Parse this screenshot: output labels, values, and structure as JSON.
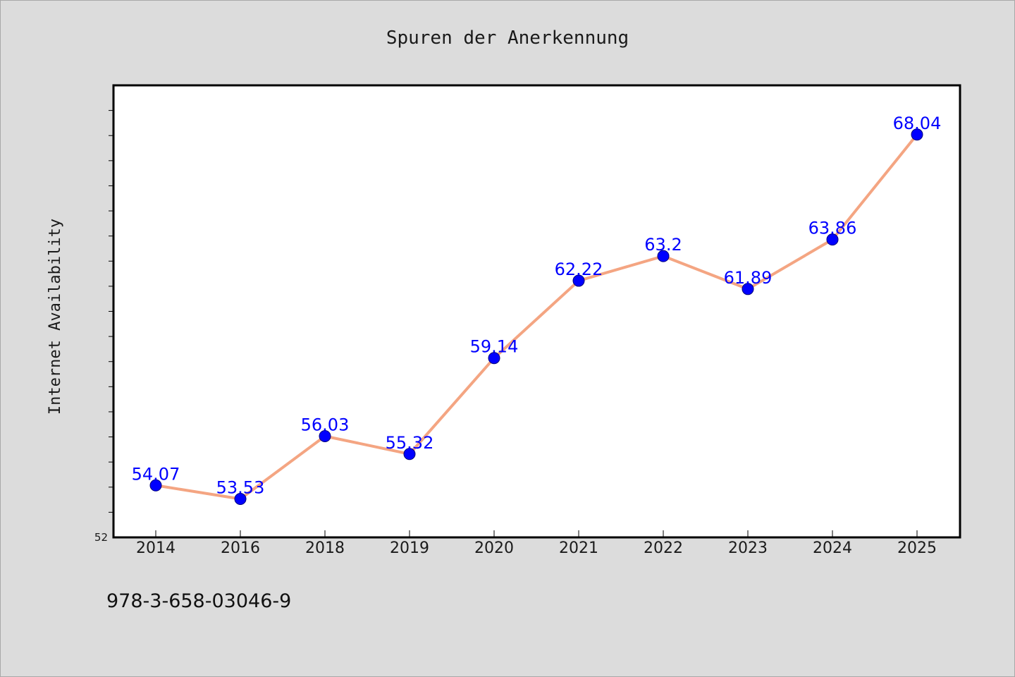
{
  "chart_data": {
    "type": "line",
    "title": "Spuren der Anerkennung",
    "xlabel": "",
    "ylabel": "Internet Availability",
    "categories": [
      "2014",
      "2016",
      "2018",
      "2019",
      "2020",
      "2021",
      "2022",
      "2023",
      "2024",
      "2025"
    ],
    "series": [
      {
        "values": [
          54.07,
          53.53,
          56.03,
          55.32,
          59.14,
          62.22,
          63.2,
          61.89,
          63.86,
          68.04
        ],
        "value_labels": [
          "54.07",
          "53.53",
          "56.03",
          "55.32",
          "59.14",
          "62.22",
          "63.2",
          "61.89",
          "63.86",
          "68.04"
        ]
      }
    ],
    "ylim": [
      52,
      70
    ],
    "y_tick_labels": [
      "52"
    ],
    "y_minor_tick_step": 1,
    "grid": false,
    "legend": "none",
    "colors": {
      "line": "#f4a582",
      "marker": "#0000ff",
      "data_label": "#0000ff",
      "background": "#dcdcdc",
      "plot_background": "#ffffff"
    }
  },
  "footer": {
    "code": "978-3-658-03046-9"
  }
}
